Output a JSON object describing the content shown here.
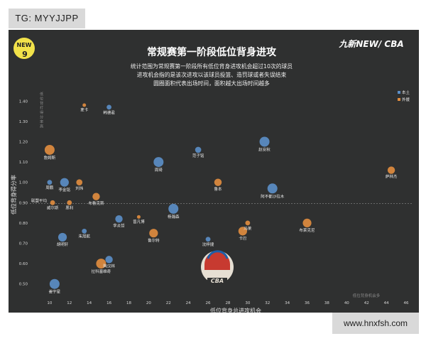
{
  "watermarks": {
    "top": "TG: MYYJJPP",
    "bottom": "www.hnxfsh.com"
  },
  "brand": {
    "logo_text": "NEW",
    "badge": "9",
    "right_logo": "九新NEW/ CBA"
  },
  "colors": {
    "background": "#2f3030",
    "series_blue": "#5b8ec7",
    "series_orange": "#e08c3f",
    "title": "#ffffff"
  },
  "chart_data": {
    "type": "scatter",
    "title": "常规赛第一阶段低位背身进攻",
    "description": [
      "统计范围为常规赛第一阶段所有低位背身进攻机会超过10次的球员",
      "进攻机会指的是该次进攻以该球员投篮、造罚球或者失误结束",
      "圆圈面积代表出场时间，面积越大出场时间越多"
    ],
    "xlabel": "低位背身总进攻机会",
    "ylabel": "低位背身得分率",
    "xlim": [
      8,
      46
    ],
    "ylim": [
      0.45,
      1.45
    ],
    "x_ticks": [
      10,
      12,
      14,
      16,
      18,
      20,
      22,
      24,
      26,
      28,
      30,
      32,
      34,
      36,
      38,
      40,
      42,
      44,
      46
    ],
    "y_ticks": [
      0.5,
      0.6,
      0.7,
      0.8,
      0.9,
      1.0,
      1.1,
      1.2,
      1.3,
      1.4
    ],
    "reference_line": {
      "y": 0.895,
      "label": "联盟平均"
    },
    "annotations": {
      "top_left_note": "低位背打得分率高",
      "bottom_right_note": "低位背身机会多"
    },
    "legend": {
      "placement": "top-right",
      "items": [
        {
          "name": "本土",
          "color": "#5b8ec7"
        },
        {
          "name": "外援",
          "color": "#e08c3f"
        }
      ]
    },
    "series": [
      {
        "name": "本土",
        "points": [
          {
            "label": "韩德君",
            "x": 16.0,
            "y": 1.37,
            "size": 2
          },
          {
            "label": "赵安秋",
            "x": 31.7,
            "y": 1.2,
            "size": 6
          },
          {
            "label": "范子铭",
            "x": 25.0,
            "y": 1.16,
            "size": 3
          },
          {
            "label": "周鹏",
            "x": 10.0,
            "y": 1.0,
            "size": 2
          },
          {
            "label": "李金铭",
            "x": 11.5,
            "y": 1.0,
            "size": 5
          },
          {
            "label": "周琦",
            "x": 21.0,
            "y": 1.1,
            "size": 6
          },
          {
            "label": "阿不都沙拉木",
            "x": 32.5,
            "y": 0.97,
            "size": 6
          },
          {
            "label": "杨瀚森",
            "x": 22.5,
            "y": 0.87,
            "size": 6
          },
          {
            "label": "李炎哲",
            "x": 17.0,
            "y": 0.82,
            "size": 4
          },
          {
            "label": "胡明轩",
            "x": 11.3,
            "y": 0.73,
            "size": 5
          },
          {
            "label": "朱旭航",
            "x": 13.5,
            "y": 0.76,
            "size": 2
          },
          {
            "label": "沈梓捷",
            "x": 26.0,
            "y": 0.72,
            "size": 2
          },
          {
            "label": "陶汉林",
            "x": 16.0,
            "y": 0.62,
            "size": 4
          },
          {
            "label": "姜宇星",
            "x": 10.5,
            "y": 0.5,
            "size": 6
          }
        ]
      },
      {
        "name": "外援",
        "points": [
          {
            "label": "麦卡",
            "x": 13.5,
            "y": 1.38,
            "size": 1
          },
          {
            "label": "詹姆斯",
            "x": 10.0,
            "y": 1.16,
            "size": 6
          },
          {
            "label": "萨林杰",
            "x": 44.5,
            "y": 1.06,
            "size": 4
          },
          {
            "label": "刘炜",
            "x": 13.0,
            "y": 1.0,
            "size": 3
          },
          {
            "label": "鲁本",
            "x": 27.0,
            "y": 1.0,
            "size": 4
          },
          {
            "label": "布鲁克斯",
            "x": 14.7,
            "y": 0.93,
            "size": 4
          },
          {
            "label": "威尔斯",
            "x": 10.3,
            "y": 0.9,
            "size": 2
          },
          {
            "label": "黑利",
            "x": 12.0,
            "y": 0.9,
            "size": 2
          },
          {
            "label": "曾凡博",
            "x": 19.0,
            "y": 0.83,
            "size": 1
          },
          {
            "label": "布莱克尼",
            "x": 36.0,
            "y": 0.8,
            "size": 5
          },
          {
            "label": "冯莱",
            "x": 30.0,
            "y": 0.8,
            "size": 2
          },
          {
            "label": "卡巴",
            "x": 29.5,
            "y": 0.76,
            "size": 5
          },
          {
            "label": "鲁尔特",
            "x": 20.5,
            "y": 0.75,
            "size": 5
          },
          {
            "label": "拉科塞维奇",
            "x": 15.2,
            "y": 0.6,
            "size": 6
          }
        ]
      }
    ]
  }
}
